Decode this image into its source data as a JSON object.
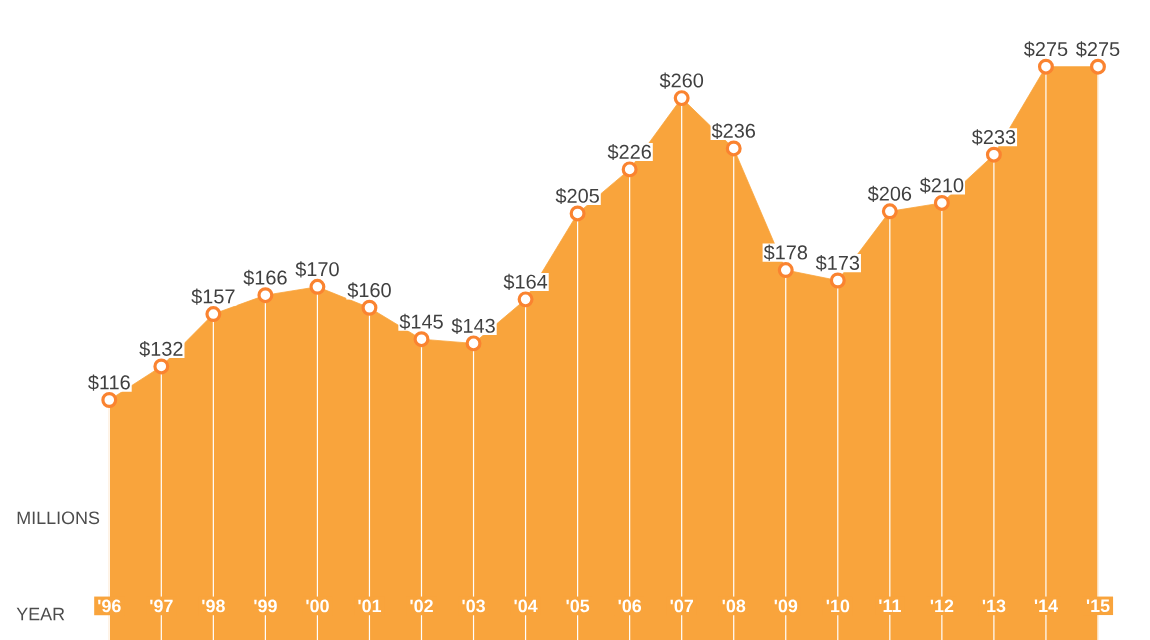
{
  "chart_data": {
    "type": "area",
    "xlabel": "YEAR",
    "ylabel": "MILLIONS",
    "categories": [
      "'96",
      "'97",
      "'98",
      "'99",
      "'00",
      "'01",
      "'02",
      "'03",
      "'04",
      "'05",
      "'06",
      "'07",
      "'08",
      "'09",
      "'10",
      "'11",
      "'12",
      "'13",
      "'14",
      "'15"
    ],
    "values": [
      116,
      132,
      157,
      166,
      170,
      160,
      145,
      143,
      164,
      205,
      226,
      260,
      236,
      178,
      173,
      206,
      210,
      233,
      275,
      275
    ],
    "value_labels": [
      "$116",
      "$132",
      "$157",
      "$166",
      "$170",
      "$160",
      "$145",
      "$143",
      "$164",
      "$205",
      "$226",
      "$260",
      "$236",
      "$178",
      "$173",
      "$206",
      "$210",
      "$233",
      "$275",
      "$275"
    ],
    "color": "#f9a43c",
    "marker": "circle",
    "grid": "x"
  }
}
